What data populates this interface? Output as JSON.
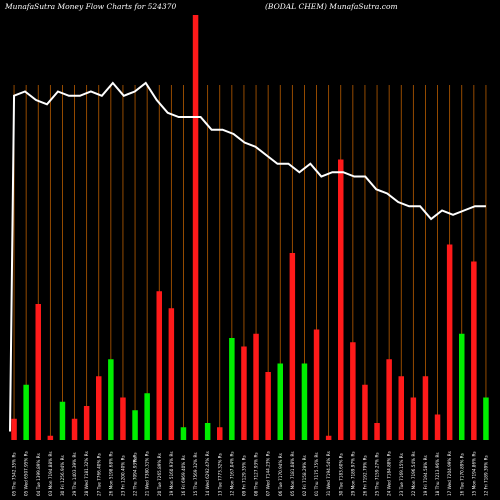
{
  "header": {
    "left": "MunafaSutra  Money Flow  Charts for 524370",
    "right": "(BODAL  CHEM) MunafaSutra.com"
  },
  "colors": {
    "background": "#000000",
    "grid": "#b85c00",
    "up": "#00ee00",
    "down": "#ff1a1a",
    "line": "#ffffff"
  },
  "chart_data": {
    "type": "bar",
    "title": "MunafaSutra  Money Flow  Charts for 524370",
    "subtitle": "(BODAL  CHEM) MunafaSutra.com",
    "xlabel": "",
    "ylabel": "",
    "grid": true,
    "categories": [
      "05 Thu 7542.35% Rs",
      "05 Wed 6507.95% Rs",
      "04 Tue 1399.89% Rs",
      "03 Mon 7194.88% Rs",
      "30 Fri 1256.94% Rs",
      "29 Thu 1403.39% Rs",
      "28 Wed 7181.32% Rs",
      "27 Tue 7766.40% Rs",
      "26 Mon 5198.68% Rs",
      "23 Fri 1200.40% Rs",
      "22 Thu 7094.93% Rs",
      "21 Wed 7380.31% Rs",
      "20 Tue 7265.89% Rs",
      "19 Mon 5160.93% Rs",
      "16 Fri 6969.40% Rs",
      "15 Thu 7569.32% Rs",
      "14 Wed 6292.47% Rs",
      "13 Tue 7773.32% Rs",
      "12 Mon 7167.04% Rs",
      "09 Fri 7129.35% Rs",
      "08 Thu 7127.93% Rs",
      "07 Wed 7144.23% Rs",
      "06 Tue 7170.94% Rs",
      "05 Mon 7181.08% Rs",
      "02 Fri 7158.29% Rs",
      "01 Thu 7175.75% Rs",
      "31 Wed 7194.54% Rs",
      "30 Tue 7183.60% Rs",
      "29 Mon 7189.97% Rs",
      "26 Fri 7192.79% Rs",
      "25 Thu 7159.27% Rs",
      "24 Wed 7184.88% Rs",
      "23 Tue 7169.15% Rs",
      "22 Mon 7196.54% Rs",
      "19 Fri 7194.58% Rs",
      "18 Thu 7213.96% Rs",
      "17 Wed 7204.99% Rs",
      "16 Tue 7170.89% Rs",
      "15 Mon 7194.86% Rs",
      "12 Fri 7189.39% Rs"
    ],
    "extra_label": "Rs",
    "values": [
      0.05,
      0.13,
      0.32,
      0.01,
      0.09,
      0.05,
      0.08,
      0.15,
      0.19,
      0.1,
      0.07,
      0.11,
      0.35,
      0.31,
      0.03,
      1.0,
      0.04,
      0.03,
      0.24,
      0.22,
      0.25,
      0.16,
      0.18,
      0.44,
      0.18,
      0.26,
      0.01,
      0.66,
      0.23,
      0.13,
      0.04,
      0.19,
      0.15,
      0.1,
      0.15,
      0.06,
      0.46,
      0.25,
      0.42,
      0.1
    ],
    "directions": [
      "down",
      "up",
      "down",
      "down",
      "up",
      "down",
      "down",
      "down",
      "up",
      "down",
      "up",
      "up",
      "down",
      "down",
      "up",
      "down",
      "up",
      "down",
      "up",
      "down",
      "down",
      "down",
      "up",
      "down",
      "up",
      "down",
      "down",
      "down",
      "down",
      "down",
      "down",
      "down",
      "down",
      "down",
      "down",
      "down",
      "down",
      "up",
      "down",
      "up"
    ],
    "line_values": [
      0.81,
      0.82,
      0.8,
      0.79,
      0.82,
      0.81,
      0.81,
      0.82,
      0.81,
      0.84,
      0.81,
      0.82,
      0.84,
      0.8,
      0.77,
      0.76,
      0.76,
      0.76,
      0.73,
      0.73,
      0.72,
      0.7,
      0.69,
      0.67,
      0.65,
      0.65,
      0.63,
      0.65,
      0.62,
      0.63,
      0.63,
      0.62,
      0.62,
      0.59,
      0.58,
      0.56,
      0.55,
      0.55,
      0.52,
      0.54,
      0.53,
      0.54,
      0.55,
      0.55
    ],
    "line_start": 0.02,
    "ylim": [
      0,
      1
    ]
  }
}
